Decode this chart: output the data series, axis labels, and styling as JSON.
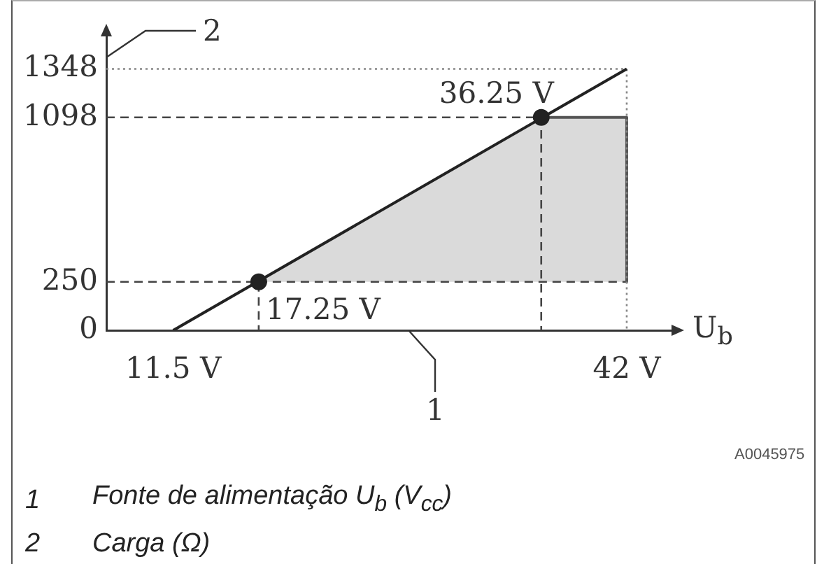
{
  "chart_data": {
    "type": "line",
    "xlabel": "U$_{b}$",
    "ylabel": "2",
    "annotations": [
      {
        "text": "17.25 V",
        "x": 17.25,
        "y": 250
      },
      {
        "text": "36.25 V",
        "x": 36.25,
        "y": 1098
      },
      "1",
      "A0045975",
      "1 Fonte de alimentação U$_{b}$ (V$_{cc}$)",
      "2 Carga (Ω)"
    ],
    "xlim": [
      7,
      45.2
    ],
    "ylim": [
      0,
      1530
    ],
    "xticks": [
      {
        "value": 11.5,
        "label": "11.5 V"
      },
      {
        "value": 42,
        "label": "42 V"
      }
    ],
    "yticks": [
      0,
      250,
      1098,
      1348
    ],
    "grid": false,
    "legend": false,
    "series": [
      {
        "type": "line",
        "color": "#444444",
        "line_style": "dashed",
        "marker": "none",
        "x": [
          17.25,
          36.25,
          42
        ],
        "values": [
          250,
          250,
          250
        ],
        "lower": [
          250,
          250,
          250
        ],
        "upper": [
          250,
          1098,
          1098
        ]
      },
      {
        "type": "line",
        "color": "#555555",
        "line_style": "solid",
        "marker": "none",
        "x": [
          36.25,
          42,
          42
        ],
        "values": [
          1098,
          1098,
          250
        ]
      },
      {
        "type": "line",
        "color": "#888888",
        "line_style": "dotted",
        "marker": "none",
        "x": [
          7,
          42,
          42
        ],
        "values": [
          1348,
          1348,
          0
        ]
      },
      {
        "type": "line",
        "color": "#444444",
        "line_style": "dashed",
        "marker": "none",
        "x": [
          7,
          17.25,
          17.25
        ],
        "values": [
          250,
          250,
          0
        ]
      },
      {
        "type": "line",
        "color": "#444444",
        "line_style": "dashed",
        "marker": "none",
        "x": [
          7,
          36.25,
          36.25
        ],
        "values": [
          1098,
          1098,
          0
        ]
      },
      {
        "type": "line",
        "color": "#222222",
        "line_style": "solid",
        "marker": "none",
        "x": [
          11.5,
          42
        ],
        "values": [
          0,
          1348
        ]
      },
      {
        "type": "scatter",
        "color": "#222222",
        "marker": "circle",
        "x": [
          17.25,
          36.25
        ],
        "values": [
          250,
          1098
        ]
      }
    ]
  }
}
